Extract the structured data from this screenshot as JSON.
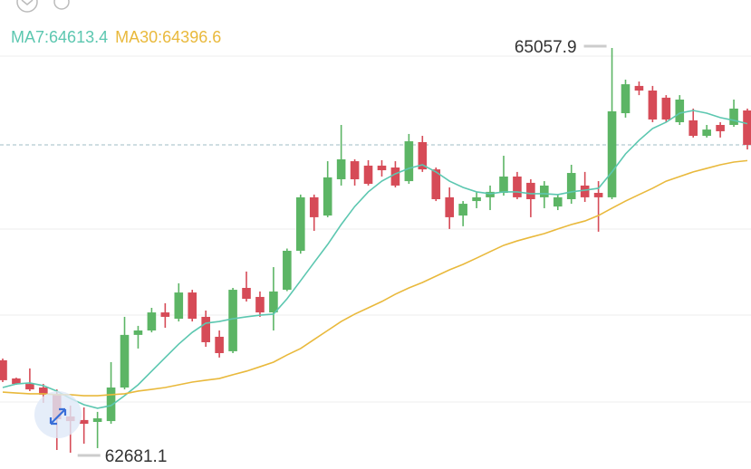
{
  "chart_data": {
    "type": "candlestick",
    "ylim": [
      62585.5,
      65339.7
    ],
    "up_color": "#5cb565",
    "down_color": "#d64b57",
    "open": [
      63224,
      63117,
      63085,
      63064,
      63027,
      62894,
      62873,
      62862,
      62867,
      63064,
      63373,
      63399,
      63505,
      63468,
      63622,
      63479,
      63362,
      63277,
      63649,
      63596,
      63505,
      63638,
      63867,
      64181,
      64074,
      64287,
      64393,
      64367,
      64367,
      64356,
      64276,
      64505,
      64345,
      64181,
      64074,
      64159,
      64181,
      64207,
      64303,
      64266,
      64181,
      64127,
      64170,
      64250,
      64207,
      64181,
      64675,
      64835,
      64808,
      64766,
      64622,
      64633,
      64542,
      64606,
      64606,
      64691
    ],
    "high": [
      63234,
      63122,
      63176,
      63085,
      63053,
      62958,
      62947,
      62921,
      63213,
      63479,
      63426,
      63532,
      63559,
      63676,
      63638,
      63516,
      63399,
      63649,
      63745,
      63628,
      63771,
      63880,
      64197,
      64197,
      64393,
      64606,
      64404,
      64399,
      64399,
      64393,
      64553,
      64542,
      64356,
      64239,
      64159,
      64213,
      64250,
      64425,
      64330,
      64287,
      64276,
      64197,
      64372,
      64330,
      64276,
      65057.9,
      64872,
      64861,
      64835,
      64781,
      64781,
      64702,
      64606,
      64622,
      64755,
      64702
    ],
    "low": [
      63096,
      63080,
      63043,
      62974,
      62697,
      62681.1,
      62734,
      62708,
      62851,
      63053,
      63293,
      63388,
      63415,
      63452,
      63452,
      63303,
      63240,
      63266,
      63569,
      63479,
      63399,
      63630,
      63850,
      63984,
      64064,
      64250,
      64250,
      64250,
      64303,
      64239,
      64260,
      64330,
      64159,
      63995,
      64011,
      64117,
      64106,
      64191,
      64170,
      64064,
      64117,
      64106,
      64143,
      64154,
      63979,
      64170,
      64649,
      64781,
      64622,
      64622,
      64606,
      64532,
      64532,
      64532,
      64595,
      64462
    ],
    "close": [
      63107,
      63085,
      63053,
      63022,
      62878,
      62867,
      62851,
      62883,
      63064,
      63373,
      63399,
      63505,
      63479,
      63622,
      63468,
      63330,
      63266,
      63638,
      63585,
      63505,
      63628,
      63867,
      64181,
      64064,
      64298,
      64404,
      64287,
      64260,
      64340,
      64250,
      64510,
      64345,
      64170,
      64064,
      64143,
      64181,
      64213,
      64303,
      64181,
      64170,
      64250,
      64181,
      64324,
      64181,
      64181,
      64686,
      64845,
      64808,
      64638,
      64638,
      64755,
      64542,
      64579,
      64569,
      64702,
      64489
    ],
    "series": [
      {
        "name": "MA7",
        "color": "#5cc7b0",
        "values": [
          63064,
          63085,
          63091,
          63075,
          63043,
          63000,
          62963,
          62942,
          62958,
          63016,
          63080,
          63160,
          63240,
          63319,
          63388,
          63442,
          63452,
          63468,
          63479,
          63489,
          63495,
          63585,
          63691,
          63798,
          63904,
          64021,
          64127,
          64213,
          64276,
          64319,
          64351,
          64372,
          64330,
          64276,
          64239,
          64213,
          64202,
          64213,
          64213,
          64202,
          64202,
          64197,
          64213,
          64223,
          64234,
          64330,
          64436,
          64516,
          64585,
          64622,
          64675,
          64691,
          64675,
          64649,
          64633,
          64613.4
        ]
      },
      {
        "name": "MA30",
        "color": "#e9b93c",
        "values": [
          63037,
          63032,
          63027,
          63027,
          63022,
          63022,
          63016,
          63016,
          63022,
          63027,
          63043,
          63053,
          63064,
          63080,
          63096,
          63107,
          63117,
          63139,
          63160,
          63186,
          63213,
          63255,
          63293,
          63346,
          63399,
          63452,
          63495,
          63532,
          63569,
          63612,
          63649,
          63681,
          63718,
          63755,
          63787,
          63824,
          63862,
          63899,
          63925,
          63947,
          63968,
          63995,
          64021,
          64042,
          64074,
          64117,
          64159,
          64197,
          64234,
          64276,
          64303,
          64330,
          64351,
          64372,
          64388,
          64396.6
        ]
      }
    ]
  }
}
